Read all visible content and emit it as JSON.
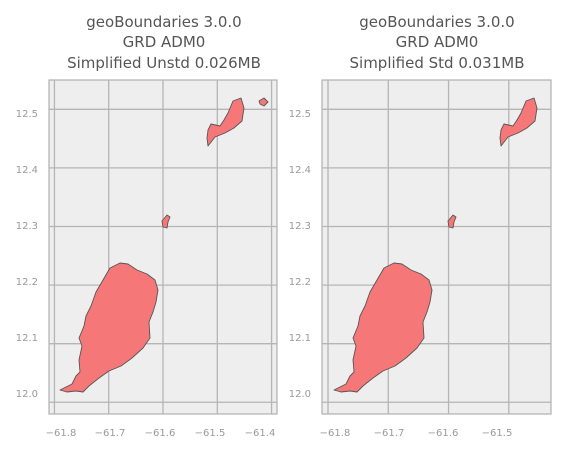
{
  "colors": {
    "land": "#f67777",
    "outline": "#555555",
    "background": "#eeeeee",
    "grid": "#b5b5b5",
    "text": "#555555"
  },
  "panels": [
    {
      "title_lines": [
        "geoBoundaries 3.0.0",
        "GRD ADM0",
        "Simplified Unstd 0.026MB"
      ],
      "xlim": [
        -61.81,
        -61.39
      ],
      "ylim": [
        11.98,
        12.55
      ],
      "x_ticks": [
        -61.8,
        -61.7,
        -61.6,
        -61.5,
        -61.4
      ],
      "x_tick_labels": [
        "−61.8",
        "−61.7",
        "−61.6",
        "−61.5",
        "−61.4"
      ],
      "y_ticks": [
        12.0,
        12.1,
        12.2,
        12.3,
        12.4,
        12.5
      ],
      "y_tick_labels": [
        "12.0",
        "12.1",
        "12.2",
        "12.3",
        "12.4",
        "12.5"
      ]
    },
    {
      "title_lines": [
        "geoBoundaries 3.0.0",
        "GRD ADM0",
        "Simplified Std 0.031MB"
      ],
      "xlim": [
        -61.81,
        -61.43
      ],
      "ylim": [
        11.98,
        12.55
      ],
      "x_ticks": [
        -61.8,
        -61.7,
        -61.6,
        -61.5
      ],
      "x_tick_labels": [
        "−61.8",
        "−61.7",
        "−61.6",
        "−61.5"
      ],
      "y_ticks": [
        12.0,
        12.1,
        12.2,
        12.3,
        12.4,
        12.5
      ],
      "y_tick_labels": [
        "12.0",
        "12.1",
        "12.2",
        "12.3",
        "12.4",
        "12.5"
      ]
    }
  ]
}
